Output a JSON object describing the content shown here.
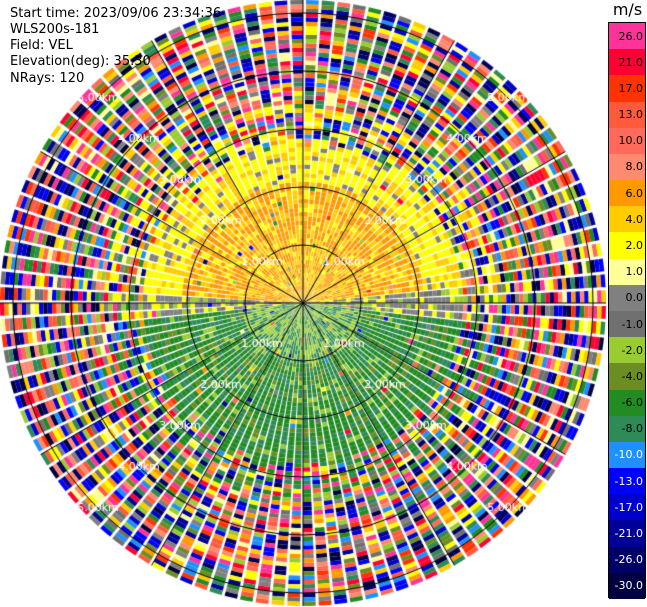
{
  "header": {
    "start_time": "Start time: 2023/09/06 23:34:36",
    "instrument": "WLS200s-181",
    "field": "Field: VEL",
    "elevation": "Elevation(deg): 35.30",
    "nrays": "NRays: 120"
  },
  "colorbar": {
    "unit": "m/s",
    "levels": [
      {
        "label": "26.0",
        "color": "#ff3399"
      },
      {
        "label": "21.0",
        "color": "#ff0033"
      },
      {
        "label": "17.0",
        "color": "#ff3300"
      },
      {
        "label": "13.0",
        "color": "#ff5a3c"
      },
      {
        "label": "10.0",
        "color": "#ff6a5a"
      },
      {
        "label": "8.0",
        "color": "#ff8a70"
      },
      {
        "label": "6.0",
        "color": "#ff9900"
      },
      {
        "label": "4.0",
        "color": "#ffcc00"
      },
      {
        "label": "2.0",
        "color": "#ffff00"
      },
      {
        "label": "1.0",
        "color": "#ffff99"
      },
      {
        "label": "0.0",
        "color": "#808080"
      },
      {
        "label": "-1.0",
        "color": "#707070"
      },
      {
        "label": "-2.0",
        "color": "#99cc33"
      },
      {
        "label": "-4.0",
        "color": "#6b8e23"
      },
      {
        "label": "-6.0",
        "color": "#228b22"
      },
      {
        "label": "-8.0",
        "color": "#2e8b57"
      },
      {
        "label": "-10.0",
        "color": "#1e90ff"
      },
      {
        "label": "-13.0",
        "color": "#0000ff"
      },
      {
        "label": "-17.0",
        "color": "#0000cc"
      },
      {
        "label": "-21.0",
        "color": "#000099"
      },
      {
        "label": "-26.0",
        "color": "#000066"
      },
      {
        "label": "-30.0",
        "color": "#000040"
      }
    ]
  },
  "ppi": {
    "range_rings": [
      {
        "label_right": "1.00km",
        "label_left": "1.00km"
      },
      {
        "label_right": "2.00km",
        "label_left": "2.00km"
      },
      {
        "label_right": "3.00km",
        "label_left": "3.00km"
      },
      {
        "label_right": "4.00km",
        "label_left": "4.00km"
      },
      {
        "label_right": "5.00km",
        "label_left": "5.00km"
      }
    ],
    "upper_ring_labels": [
      "0.00km",
      "1.00km",
      "2.00km",
      "3.00km",
      "4.00km",
      "5.00km"
    ]
  }
}
